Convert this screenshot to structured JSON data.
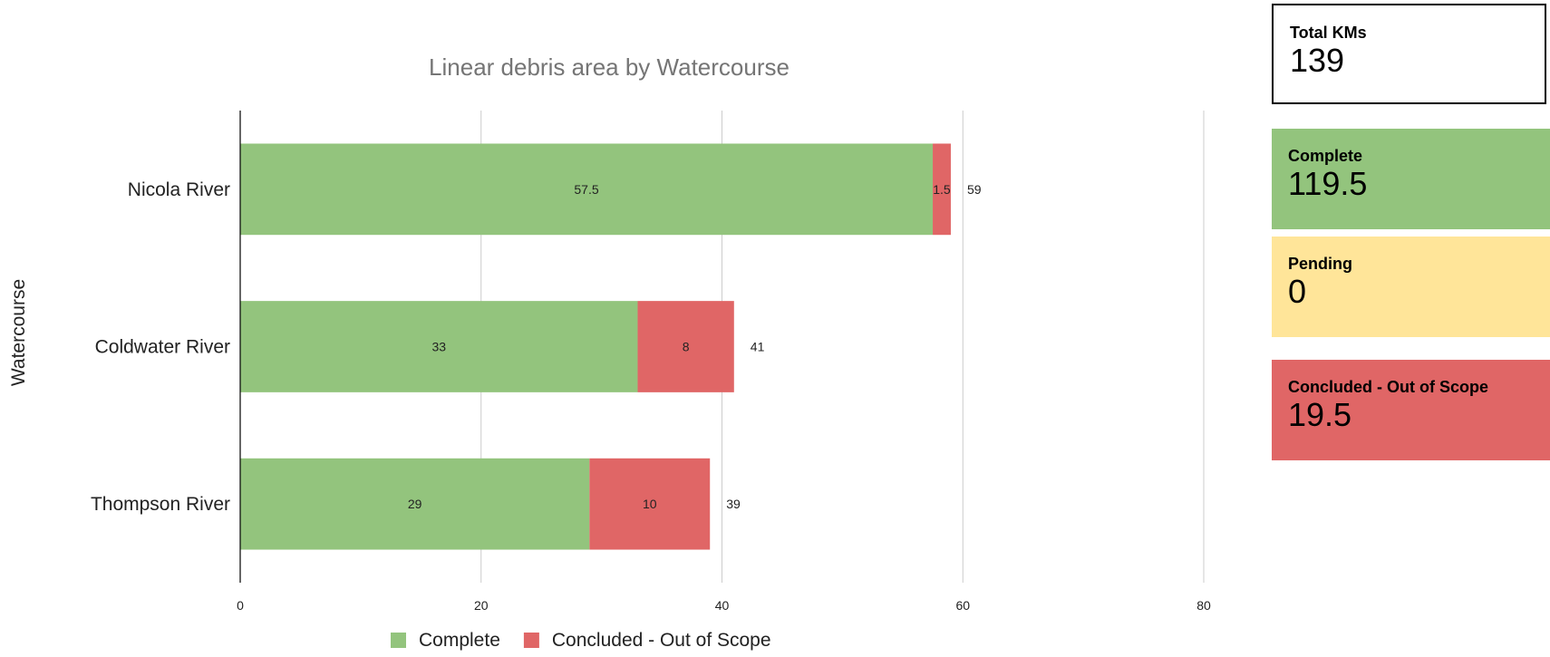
{
  "chart_data": {
    "type": "bar",
    "orientation": "horizontal",
    "stacked": true,
    "title": "Linear debris area by Watercourse",
    "ylabel": "Watercourse",
    "xlabel": "",
    "categories": [
      "Nicola River",
      "Coldwater River",
      "Thompson River"
    ],
    "series": [
      {
        "name": "Complete",
        "color": "#93c47d",
        "values": [
          57.5,
          33,
          29
        ]
      },
      {
        "name": "Concluded - Out of Scope",
        "color": "#e06666",
        "values": [
          1.5,
          8,
          10
        ]
      }
    ],
    "totals": [
      59,
      41,
      39
    ],
    "xlim": [
      0,
      80
    ],
    "xticks": [
      0,
      20,
      40,
      60,
      80
    ],
    "grid": true,
    "legend_position": "bottom"
  },
  "cards": {
    "total": {
      "title": "Total KMs",
      "value": "139",
      "color": "#ffffff"
    },
    "complete": {
      "title": "Complete",
      "value": "119.5",
      "color": "#93c47d"
    },
    "pending": {
      "title": "Pending",
      "value": "0",
      "color": "#ffe599"
    },
    "concluded": {
      "title": "Concluded - Out of Scope",
      "value": "19.5",
      "color": "#e06666"
    }
  }
}
